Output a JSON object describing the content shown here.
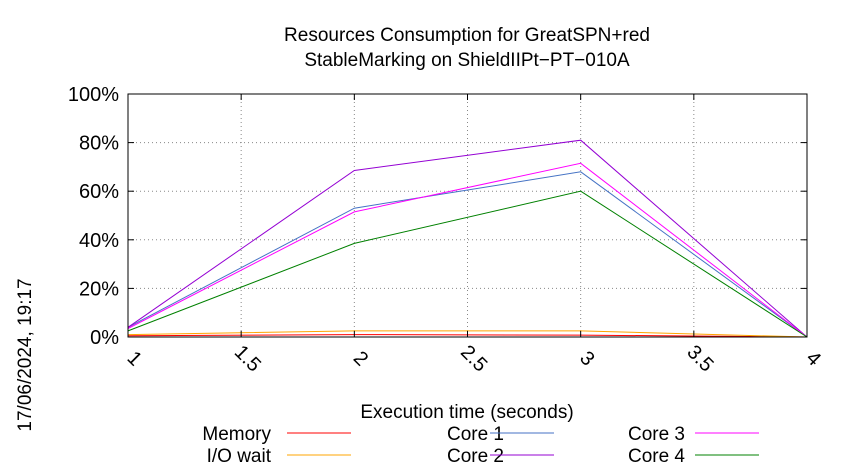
{
  "chart_data": {
    "type": "line",
    "title": [
      "Resources Consumption for GreatSPN+red",
      "StableMarking on ShieldIIPt−PT−010A"
    ],
    "xlabel": "Execution time (seconds)",
    "ylabel": "",
    "xlim": [
      1,
      4
    ],
    "ylim": [
      0,
      100
    ],
    "x_ticks": [
      "1",
      "1.5",
      "2",
      "2.5",
      "3",
      "3.5",
      "4"
    ],
    "y_ticks": [
      "0%",
      "20%",
      "40%",
      "60%",
      "80%",
      "100%"
    ],
    "grid": true,
    "legend_position": "bottom",
    "timestamp": "17/06/2024, 19:17",
    "series": [
      {
        "name": "Memory",
        "color": "#ff0000",
        "x": [
          1,
          2,
          3,
          4
        ],
        "y": [
          0.5,
          1.0,
          0.8,
          0
        ]
      },
      {
        "name": "I/O wait",
        "color": "#ffa500",
        "x": [
          1,
          2,
          3,
          4
        ],
        "y": [
          1.0,
          2.5,
          2.5,
          0
        ]
      },
      {
        "name": "Core 1",
        "color": "#4472c4",
        "x": [
          1,
          2,
          3,
          4
        ],
        "y": [
          4,
          53,
          68,
          0
        ]
      },
      {
        "name": "Core 2",
        "color": "#9400d3",
        "x": [
          1,
          2,
          3,
          4
        ],
        "y": [
          4,
          68.5,
          81,
          0
        ]
      },
      {
        "name": "Core 3",
        "color": "#ff00ff",
        "x": [
          1,
          2,
          3,
          4
        ],
        "y": [
          3.5,
          51.5,
          71.5,
          0
        ]
      },
      {
        "name": "Core 4",
        "color": "#008000",
        "x": [
          1,
          2,
          3,
          4
        ],
        "y": [
          2.5,
          38.5,
          60,
          0
        ]
      }
    ]
  }
}
